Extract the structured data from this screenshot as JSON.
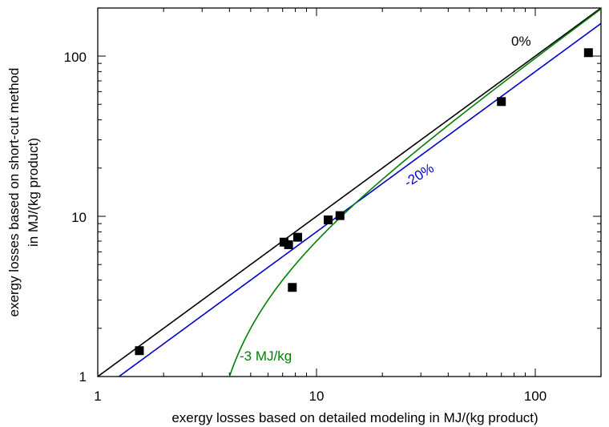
{
  "chart_data": {
    "type": "scatter",
    "title": "",
    "xlabel": "exergy losses based on detailed modeling in MJ/(kg product)",
    "ylabel_lines": [
      "exergy losses based on short-cut method",
      "in MJ/(kg product)"
    ],
    "xscale": "log",
    "yscale": "log",
    "xlim": [
      1,
      200
    ],
    "ylim": [
      1,
      200
    ],
    "xticks": [
      1,
      10,
      100
    ],
    "xtick_labels": [
      "1",
      "10",
      "100"
    ],
    "yticks": [
      1,
      10,
      100
    ],
    "ytick_labels": [
      "1",
      "10",
      "100"
    ],
    "grid": false,
    "legend": "none",
    "points": [
      {
        "x": 1.55,
        "y": 1.45
      },
      {
        "x": 7.1,
        "y": 6.9
      },
      {
        "x": 7.45,
        "y": 6.65
      },
      {
        "x": 7.75,
        "y": 3.6
      },
      {
        "x": 8.2,
        "y": 7.4
      },
      {
        "x": 11.3,
        "y": 9.5
      },
      {
        "x": 12.8,
        "y": 10.1
      },
      {
        "x": 70,
        "y": 52
      },
      {
        "x": 175,
        "y": 105
      }
    ],
    "reference_lines": [
      {
        "label": "0%",
        "relation": "y = x",
        "color": "#000000"
      },
      {
        "label": "-20%",
        "relation": "y = 0.8 x",
        "color": "#0000cc"
      },
      {
        "label": "-3 MJ/kg",
        "relation": "y = x - 3",
        "color": "#008000"
      }
    ],
    "marker_color": "#000000"
  }
}
